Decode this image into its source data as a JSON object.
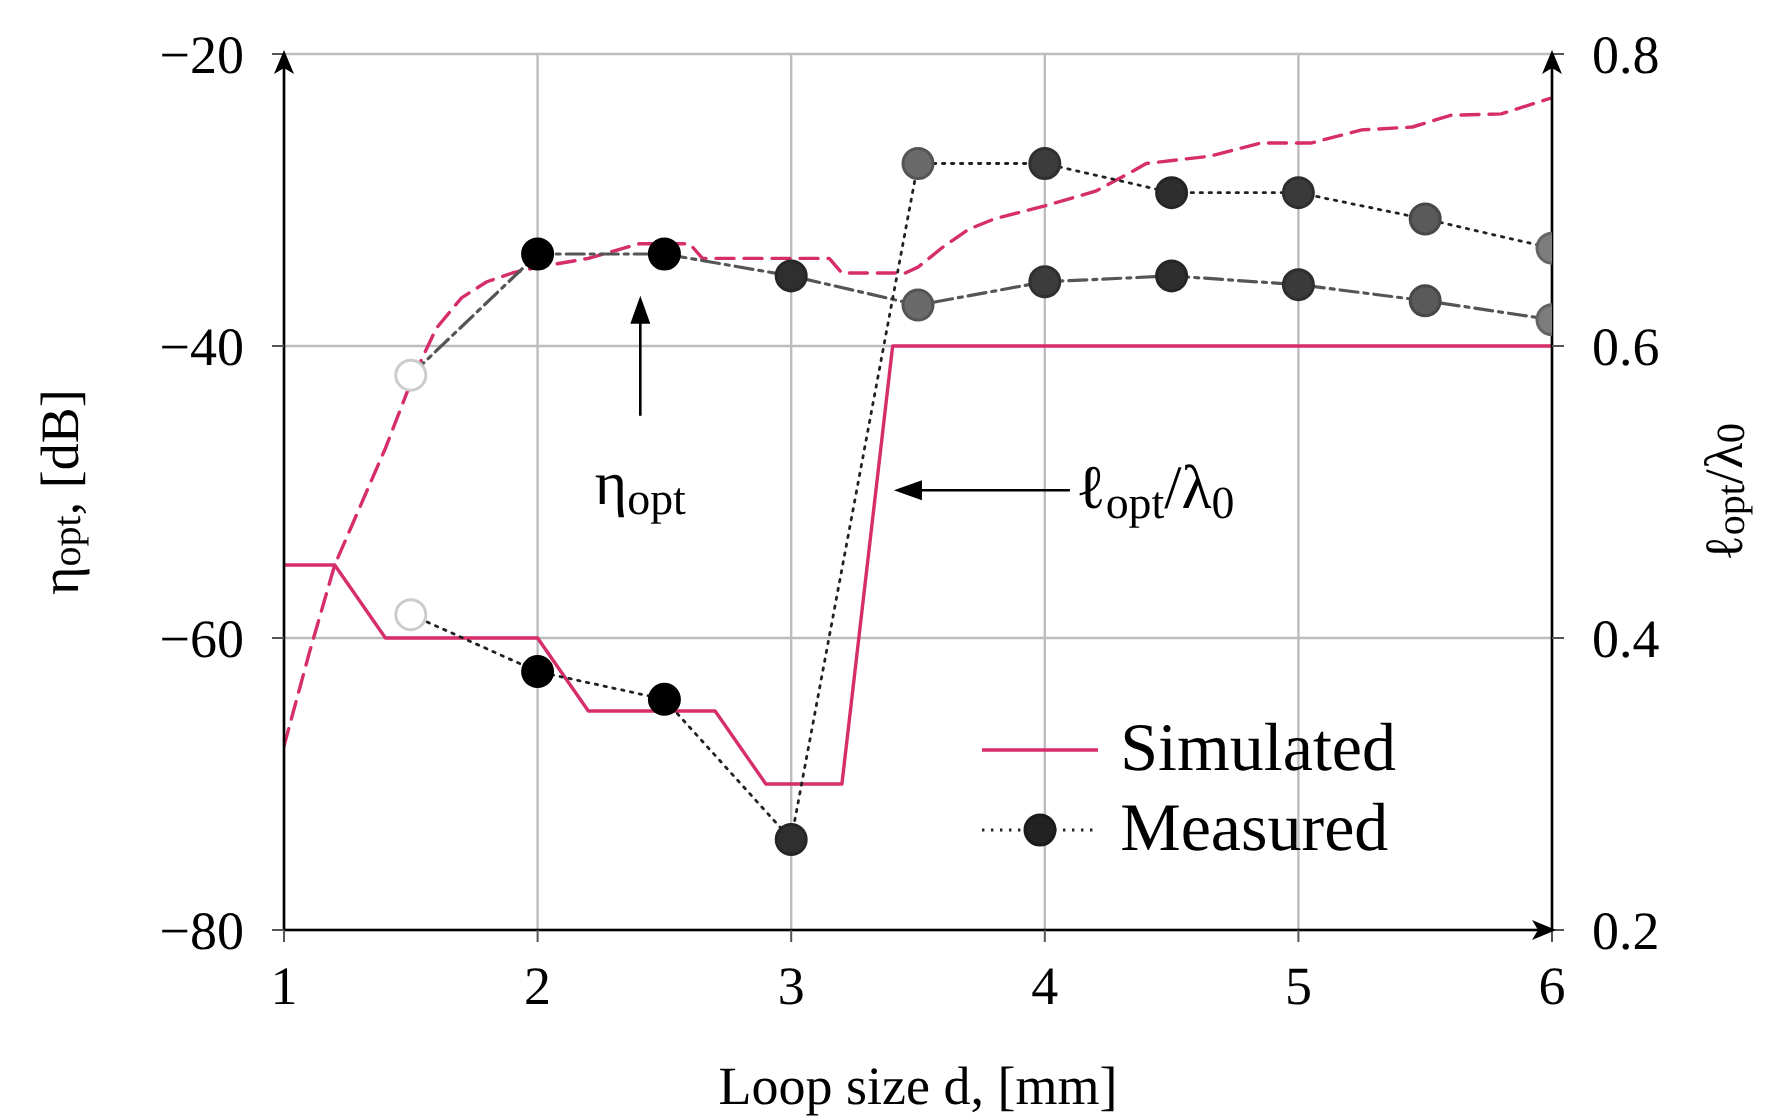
{
  "chart_data": {
    "type": "line",
    "xlabel": "Loop size d, [mm]",
    "ylabel": "η$_{opt}$, [dB]",
    "y2label": "ℓ$_{opt}$/λ$_{0}$",
    "xlim": [
      1,
      6
    ],
    "xticks": [
      1,
      2,
      3,
      4,
      5,
      6
    ],
    "ylim": [
      -80,
      -20
    ],
    "yticks": [
      -80,
      -60,
      -40,
      -20
    ],
    "y2lim": [
      0.2,
      0.8
    ],
    "y2ticks": [
      0.2,
      0.4,
      0.6,
      0.8
    ],
    "grid": true,
    "legend": "bottom right",
    "annotations": [
      "η$_{opt}$",
      "ℓ$_{opt}$/λ$_{0}$"
    ],
    "series": [
      {
        "color": "#d62d6b",
        "line_style": "dashed",
        "marker": "none",
        "x": [
          1,
          1.1,
          1.2,
          1.3,
          1.4,
          1.5,
          1.6,
          1.7,
          1.8,
          1.9,
          2,
          2.2,
          2.4,
          2.6,
          2.65,
          3.15,
          3.2,
          3.45,
          3.5,
          3.6,
          3.7,
          3.8,
          4,
          4.2,
          4.35,
          4.4,
          4.65,
          4.85,
          5.05,
          5.25,
          5.45,
          5.6,
          5.8,
          6
        ],
        "values": [
          -67.4,
          -61,
          -55,
          -51,
          -47,
          -42.5,
          -38.8,
          -36.7,
          -35.6,
          -35,
          -34.6,
          -34,
          -33,
          -33,
          -34,
          -34,
          -35,
          -35,
          -34.6,
          -33.2,
          -32,
          -31.3,
          -30.4,
          -29.4,
          -28,
          -27.5,
          -27,
          -26.1,
          -26.1,
          -25.2,
          -25,
          -24.2,
          -24.1,
          -23
        ]
      },
      {
        "name": "Simulated",
        "axis": "y2",
        "color": "#d62d6b",
        "line_style": "solid",
        "marker": "none",
        "x": [
          1,
          1.2,
          1.4,
          2,
          2.2,
          2.7,
          2.9,
          3.2,
          3.4,
          6
        ],
        "values": [
          0.45,
          0.45,
          0.4,
          0.4,
          0.35,
          0.35,
          0.3,
          0.3,
          0.6,
          0.6
        ]
      },
      {
        "color": "#555555",
        "line_style": "dashdot",
        "marker": "circle",
        "colors": [
          "#ffffff",
          "#000000",
          "#000000",
          "#2f2f2f",
          "#6a6a6a",
          "#3c3c3c",
          "#2e2e2e",
          "#3a3a3a",
          "#5a5a5a",
          "#7d7d7d"
        ],
        "x": [
          1.5,
          2,
          2.5,
          3,
          3.5,
          4,
          4.5,
          5,
          5.5,
          6
        ],
        "values": [
          -42,
          -33.7,
          -33.7,
          -35.2,
          -37.2,
          -35.6,
          -35.2,
          -35.8,
          -36.9,
          -38.2
        ]
      },
      {
        "name": "Measured",
        "axis": "y2",
        "color": "#222222",
        "line_style": "dotted",
        "marker": "circle",
        "colors": [
          "#ffffff",
          "#000000",
          "#000000",
          "#2f2f2f",
          "#6a6a6a",
          "#3c3c3c",
          "#2e2e2e",
          "#3a3a3a",
          "#5a5a5a",
          "#7d7d7d"
        ],
        "x": [
          1.5,
          2,
          2.5,
          3,
          3.5,
          4,
          4.5,
          5,
          5.5,
          6
        ],
        "values": [
          0.416,
          0.377,
          0.358,
          0.262,
          0.725,
          0.725,
          0.705,
          0.705,
          0.687,
          0.667
        ]
      }
    ]
  }
}
